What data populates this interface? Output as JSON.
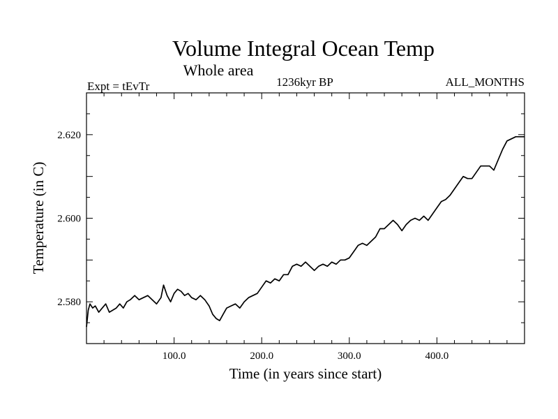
{
  "chart_data": {
    "type": "line",
    "title": "Volume Integral Ocean Temp",
    "subtitle": "Whole area",
    "left_label": "Expt = tEvTr",
    "center_label": "1236kyr BP",
    "right_label": "ALL_MONTHS",
    "xlabel": "Time (in years since start)",
    "ylabel": "Temperature (in C)",
    "xlim": [
      0,
      500
    ],
    "ylim": [
      2.57,
      2.63
    ],
    "x_ticks": [
      100,
      200,
      300,
      400
    ],
    "x_tick_labels": [
      "100.0",
      "200.0",
      "300.0",
      "400.0"
    ],
    "y_ticks": [
      2.58,
      2.6,
      2.62
    ],
    "y_tick_labels": [
      "2.580",
      "2.600",
      "2.620"
    ],
    "series": [
      {
        "name": "Volume Integral Ocean Temp",
        "color": "#000000",
        "x": [
          0,
          2,
          4,
          7,
          10,
          14,
          18,
          22,
          26,
          30,
          34,
          38,
          42,
          46,
          50,
          55,
          60,
          65,
          70,
          75,
          80,
          85,
          88,
          92,
          96,
          100,
          104,
          108,
          112,
          116,
          120,
          125,
          130,
          135,
          140,
          144,
          148,
          152,
          156,
          160,
          165,
          170,
          175,
          180,
          185,
          190,
          195,
          200,
          205,
          210,
          215,
          220,
          225,
          230,
          235,
          240,
          245,
          250,
          255,
          260,
          265,
          270,
          275,
          280,
          285,
          290,
          295,
          300,
          305,
          310,
          315,
          320,
          325,
          330,
          335,
          340,
          345,
          350,
          355,
          360,
          365,
          370,
          375,
          380,
          385,
          390,
          395,
          400,
          405,
          410,
          415,
          420,
          425,
          430,
          435,
          440,
          445,
          450,
          455,
          460,
          465,
          470,
          475,
          480,
          485,
          490,
          495,
          500
        ],
        "y": [
          2.574,
          2.578,
          2.5795,
          2.5785,
          2.579,
          2.5775,
          2.5785,
          2.5795,
          2.5775,
          2.578,
          2.5785,
          2.5795,
          2.5785,
          2.58,
          2.5805,
          2.5815,
          2.5805,
          2.581,
          2.5815,
          2.5805,
          2.5795,
          2.581,
          2.584,
          2.5815,
          2.58,
          2.582,
          2.583,
          2.5825,
          2.5815,
          2.582,
          2.581,
          2.5805,
          2.5815,
          2.5805,
          2.579,
          2.577,
          2.576,
          2.5755,
          2.577,
          2.5785,
          2.579,
          2.5795,
          2.5785,
          2.58,
          2.581,
          2.5815,
          2.582,
          2.5835,
          2.585,
          2.5845,
          2.5855,
          2.585,
          2.5865,
          2.5865,
          2.5885,
          2.589,
          2.5885,
          2.5895,
          2.5885,
          2.5875,
          2.5885,
          2.589,
          2.5885,
          2.5895,
          2.589,
          2.59,
          2.59,
          2.5905,
          2.592,
          2.5935,
          2.594,
          2.5935,
          2.5945,
          2.5955,
          2.5975,
          2.5975,
          2.5985,
          2.5995,
          2.5985,
          2.597,
          2.5985,
          2.5995,
          2.6,
          2.5995,
          2.6005,
          2.5995,
          2.601,
          2.6025,
          2.604,
          2.6045,
          2.6055,
          2.607,
          2.6085,
          2.61,
          2.6095,
          2.6095,
          2.611,
          2.6125,
          2.6125,
          2.6125,
          2.6115,
          2.614,
          2.6165,
          2.6185,
          2.619,
          2.6195,
          2.6195,
          2.6195
        ]
      }
    ]
  }
}
